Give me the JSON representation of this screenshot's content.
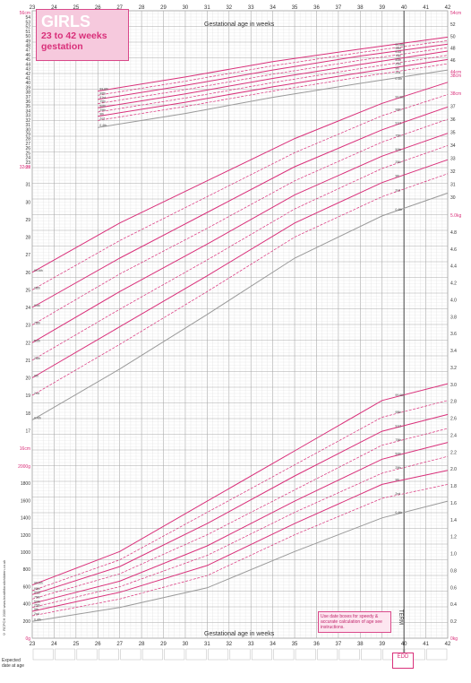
{
  "title": "GIRLS",
  "subtitle_1": "23 to 42 weeks",
  "subtitle_2": "gestation",
  "x_axis_label": "Gestational age in weeks",
  "note": "Use date boxes for speedy & accurate calculation of age see instructions.",
  "edd_label": "EDD",
  "term_label": "TERM",
  "expected_label_1": "Expected",
  "expected_label_2": "date at age",
  "side_credit": "© RCPCH 2009 www.healthforallchildren.co.uk",
  "colors": {
    "pink": "#d9307a",
    "pink_light": "#f2a9c9",
    "grid": "#d8d8d8",
    "grid_major": "#a9a9a9",
    "grey_line": "#9a9a9a"
  },
  "chart_data": [
    {
      "type": "line",
      "title": "Head circumference",
      "x_label": "Gestational age in weeks",
      "x_range": [
        23,
        42
      ],
      "y_range": [
        34,
        56
      ],
      "y_unit": "cm",
      "y_tick_labels_left": [
        "56cm",
        "54",
        "53",
        "52",
        "51",
        "50",
        "49",
        "48",
        "47",
        "46",
        "45",
        "44",
        "43",
        "42",
        "41",
        "40",
        "39",
        "38",
        "37",
        "36",
        "35",
        "34",
        "33",
        "32",
        "31",
        "30",
        "29",
        "28",
        "27",
        "26",
        "25",
        "24",
        "23",
        "22"
      ],
      "y_tick_labels_right": [
        "54cm",
        "52",
        "50",
        "48",
        "46",
        "44cm",
        "38cm"
      ],
      "centile_labels": [
        "99.6th",
        "98th",
        "91st",
        "75th",
        "50th",
        "25th",
        "9th",
        "2nd",
        "0.4th"
      ],
      "series": [
        {
          "x": [
            26,
            30,
            34,
            38,
            42
          ],
          "y": [
            44.8,
            46.8,
            49.0,
            50.8,
            52.5
          ]
        },
        {
          "x": [
            26,
            30,
            34,
            38,
            42
          ],
          "y": [
            44.2,
            46.2,
            48.4,
            50.3,
            52.0
          ]
        },
        {
          "x": [
            26,
            30,
            34,
            38,
            42
          ],
          "y": [
            43.6,
            45.6,
            47.8,
            49.8,
            51.5
          ]
        },
        {
          "x": [
            26,
            30,
            34,
            38,
            42
          ],
          "y": [
            43.0,
            45.0,
            47.2,
            49.2,
            51.0
          ]
        },
        {
          "x": [
            26,
            30,
            34,
            38,
            42
          ],
          "y": [
            42.4,
            44.4,
            46.6,
            48.6,
            50.5
          ]
        },
        {
          "x": [
            26,
            30,
            34,
            38,
            42
          ],
          "y": [
            41.8,
            43.8,
            46.0,
            48.0,
            49.9
          ]
        },
        {
          "x": [
            26,
            30,
            34,
            38,
            42
          ],
          "y": [
            41.2,
            43.2,
            45.4,
            47.4,
            49.3
          ]
        },
        {
          "x": [
            26,
            30,
            34,
            38,
            42
          ],
          "y": [
            40.6,
            42.6,
            44.8,
            46.8,
            48.7
          ]
        },
        {
          "x": [
            26,
            30,
            34,
            38,
            42
          ],
          "y": [
            39.6,
            41.6,
            43.9,
            45.9,
            47.8
          ]
        }
      ]
    },
    {
      "type": "line",
      "title": "Length",
      "x_range": [
        23,
        42
      ],
      "y_range": [
        16,
        32
      ],
      "y_unit": "cm",
      "y_tick_labels_left": [
        "32cm",
        "31",
        "30",
        "29",
        "28",
        "27",
        "26",
        "25",
        "24",
        "23",
        "22",
        "21",
        "20",
        "19",
        "18",
        "17",
        "16cm"
      ],
      "y_tick_labels_right": [
        "38cm",
        "37",
        "36",
        "35",
        "34",
        "33",
        "32",
        "31",
        "30"
      ],
      "centile_labels": [
        "99.6th",
        "98th",
        "91st",
        "75th",
        "50th",
        "25th",
        "9th",
        "2nd",
        "0.4th"
      ],
      "series": [
        {
          "x": [
            23,
            27,
            31,
            35,
            39,
            42
          ],
          "y": [
            26.0,
            28.8,
            31.2,
            33.6,
            35.6,
            36.8
          ]
        },
        {
          "x": [
            23,
            27,
            31,
            35,
            39,
            42
          ],
          "y": [
            25.0,
            27.8,
            30.3,
            32.8,
            34.9,
            36.1
          ]
        },
        {
          "x": [
            23,
            27,
            31,
            35,
            39,
            42
          ],
          "y": [
            24.0,
            26.8,
            29.4,
            32.0,
            34.1,
            35.4
          ]
        },
        {
          "x": [
            23,
            27,
            31,
            35,
            39,
            42
          ],
          "y": [
            23.0,
            25.9,
            28.5,
            31.2,
            33.4,
            34.7
          ]
        },
        {
          "x": [
            23,
            27,
            31,
            35,
            39,
            42
          ],
          "y": [
            22.0,
            24.9,
            27.6,
            30.4,
            32.6,
            33.9
          ]
        },
        {
          "x": [
            23,
            27,
            31,
            35,
            39,
            42
          ],
          "y": [
            21.0,
            23.9,
            26.7,
            29.6,
            31.9,
            33.2
          ]
        },
        {
          "x": [
            23,
            27,
            31,
            35,
            39,
            42
          ],
          "y": [
            20.0,
            22.9,
            25.8,
            28.8,
            31.1,
            32.4
          ]
        },
        {
          "x": [
            23,
            27,
            31,
            35,
            39,
            42
          ],
          "y": [
            19.0,
            21.9,
            24.9,
            28.0,
            30.3,
            31.6
          ]
        },
        {
          "x": [
            23,
            27,
            31,
            35,
            39,
            42
          ],
          "y": [
            17.6,
            20.5,
            23.6,
            26.8,
            29.2,
            30.5
          ]
        }
      ]
    },
    {
      "type": "line",
      "title": "Weight",
      "x_range": [
        23,
        42
      ],
      "y_range": [
        0,
        5.0
      ],
      "y_unit": "kg",
      "y_tick_labels_left": [
        "2000g",
        "1800",
        "1600",
        "1400",
        "1200",
        "1000",
        "800",
        "600",
        "400",
        "200",
        "0g"
      ],
      "y_tick_labels_right": [
        "5.0kg",
        "4.8",
        "4.6",
        "4.4",
        "4.2",
        "4.0",
        "3.8",
        "3.6",
        "3.4",
        "3.2",
        "3.0",
        "2.8",
        "2.6",
        "2.4",
        "2.2",
        "2.0",
        "1.8",
        "1.6",
        "1.4",
        "1.2",
        "1.0",
        "0.8",
        "0.6",
        "0.4",
        "0.2",
        "0kg"
      ],
      "centile_labels": [
        "99.6th",
        "98th",
        "91st",
        "75th",
        "50th",
        "25th",
        "9th",
        "2nd",
        "0.4th"
      ],
      "series": [
        {
          "x": [
            23,
            27,
            31,
            35,
            39,
            42
          ],
          "y": [
            0.95,
            1.55,
            2.45,
            3.35,
            4.25,
            4.55
          ]
        },
        {
          "x": [
            23,
            27,
            31,
            35,
            39,
            42
          ],
          "y": [
            0.85,
            1.4,
            2.25,
            3.1,
            3.95,
            4.25
          ]
        },
        {
          "x": [
            23,
            27,
            31,
            35,
            39,
            42
          ],
          "y": [
            0.78,
            1.28,
            2.05,
            2.9,
            3.7,
            4.0
          ]
        },
        {
          "x": [
            23,
            27,
            31,
            35,
            39,
            42
          ],
          "y": [
            0.7,
            1.15,
            1.85,
            2.65,
            3.45,
            3.75
          ]
        },
        {
          "x": [
            23,
            27,
            31,
            35,
            39,
            42
          ],
          "y": [
            0.62,
            1.02,
            1.65,
            2.45,
            3.2,
            3.5
          ]
        },
        {
          "x": [
            23,
            27,
            31,
            35,
            39,
            42
          ],
          "y": [
            0.55,
            0.92,
            1.48,
            2.25,
            2.95,
            3.25
          ]
        },
        {
          "x": [
            23,
            27,
            31,
            35,
            39,
            42
          ],
          "y": [
            0.48,
            0.82,
            1.3,
            2.05,
            2.75,
            3.0
          ]
        },
        {
          "x": [
            23,
            27,
            31,
            35,
            39,
            42
          ],
          "y": [
            0.4,
            0.7,
            1.12,
            1.85,
            2.5,
            2.75
          ]
        },
        {
          "x": [
            23,
            27,
            31,
            35,
            39,
            42
          ],
          "y": [
            0.3,
            0.55,
            0.9,
            1.55,
            2.15,
            2.45
          ]
        }
      ]
    }
  ],
  "x_ticks": [
    "23",
    "24",
    "25",
    "26",
    "27",
    "28",
    "29",
    "30",
    "31",
    "32",
    "33",
    "34",
    "35",
    "36",
    "37",
    "38",
    "39",
    "40",
    "41",
    "42"
  ]
}
